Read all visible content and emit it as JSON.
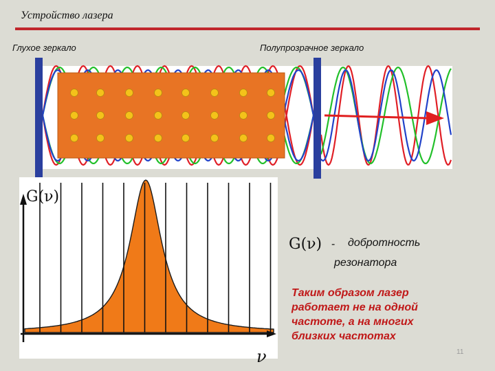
{
  "slide": {
    "title": "Устройство лазера",
    "mirror_left_label": "Глухое  зеркало",
    "mirror_right_label": "Полупрозрачное  зеркало",
    "q_symbol": "G(ν)",
    "q_dash": "-",
    "q_definition_line1": "добротность",
    "q_definition_line2": "резонатора",
    "conclusion": "Таким образом лазер\nработает не на одной\nчастоте, а на многих\nблизких частотах",
    "axis_y_label": "G(ν)",
    "axis_x_label": "ν",
    "page_number": "11"
  },
  "colors": {
    "rule": "#c0262b",
    "mirror": "#2a3f9e",
    "medium": "#e87424",
    "atom": "#f4c21a",
    "wave_red": "#e01f26",
    "wave_green": "#22c02a",
    "wave_blue": "#2142c9",
    "output_arrow": "#e01f1f",
    "spectrum_fill": "#f07a18"
  },
  "spectrum": {
    "mode_count": 12,
    "modes_under_curve": "filled-orange"
  }
}
